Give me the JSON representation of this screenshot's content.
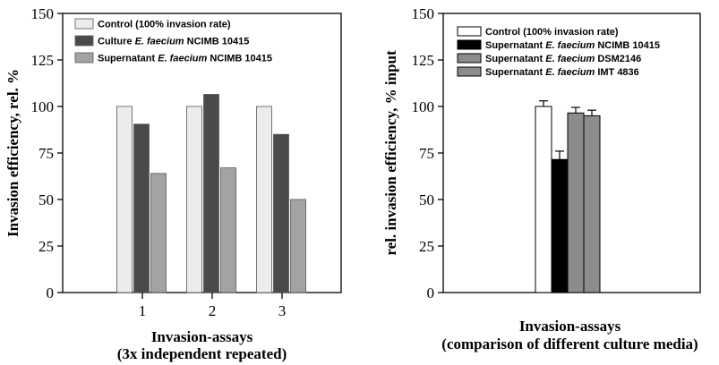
{
  "chart_data": [
    {
      "type": "bar",
      "ylabel": "Invasion efficiency, rel. %",
      "xlabel": [
        "Invasion-assays",
        "(3x independent repeated)"
      ],
      "categories": [
        "1",
        "2",
        "3"
      ],
      "ylim": [
        0,
        150
      ],
      "yticks": [
        0,
        25,
        50,
        75,
        100,
        125,
        150
      ],
      "series": [
        {
          "name": [
            "Control (100%  invasion rate)"
          ],
          "color": "#ececec",
          "values": [
            100,
            100,
            100
          ]
        },
        {
          "name": [
            "Culture ",
            "E. faecium",
            " NCIMB 10415"
          ],
          "color": "#4a4a4a",
          "values": [
            90.5,
            106.5,
            85
          ]
        },
        {
          "name": [
            "Supernatant ",
            "E. faecium",
            " NCIMB 10415"
          ],
          "color": "#a3a3a3",
          "values": [
            64,
            67,
            50
          ]
        }
      ],
      "legend_position": "top-left",
      "grid": false
    },
    {
      "type": "bar",
      "ylabel": "rel. invasion efficiency, % input",
      "xlabel": [
        "Invasion-assays",
        "(comparison of different culture  media)"
      ],
      "categories": [
        ""
      ],
      "ylim": [
        0,
        150
      ],
      "yticks": [
        0,
        25,
        50,
        75,
        100,
        125,
        150
      ],
      "series": [
        {
          "name": [
            "Control (100% invasion rate)"
          ],
          "color": "#ffffff",
          "values": [
            100
          ],
          "error": [
            3
          ]
        },
        {
          "name": [
            "Supernatant ",
            "E. faecium",
            " NCIMB 10415"
          ],
          "color": "#000000",
          "values": [
            71.5
          ],
          "error": [
            4.5
          ]
        },
        {
          "name": [
            "Supernatant ",
            "E. faecium",
            " DSM2146"
          ],
          "color": "#8c8c8c",
          "values": [
            96.5
          ],
          "error": [
            3
          ]
        },
        {
          "name": [
            "Supernatant ",
            "E. faecium",
            " IMT 4836"
          ],
          "color": "#8c8c8c",
          "values": [
            95
          ],
          "error": [
            3
          ]
        }
      ],
      "legend_position": "top-left",
      "grid": false
    }
  ]
}
